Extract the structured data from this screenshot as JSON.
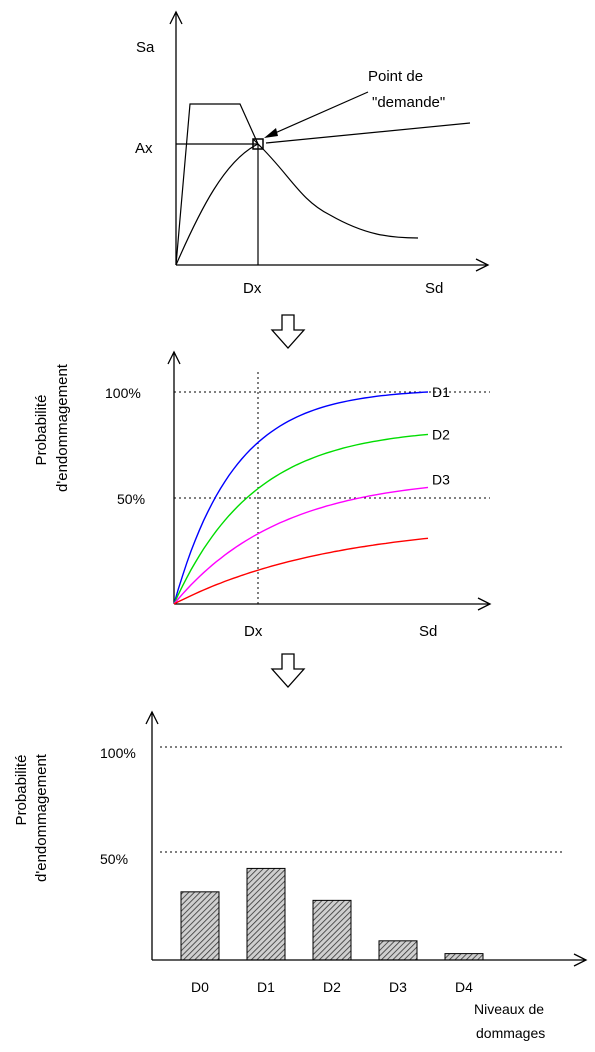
{
  "panel1": {
    "y_axis_label": "Sa",
    "x_axis_label": "Sd",
    "ax_label": "Ax",
    "dx_label": "Dx",
    "annotation_line1": "Point de",
    "annotation_line2": "\"demande\""
  },
  "panel2": {
    "y_axis_label_line1": "Probabilité",
    "y_axis_label_line2": "d'endommagement",
    "x_axis_label": "Sd",
    "dx_label": "Dx",
    "tick_100": "100%",
    "tick_50": "50%",
    "curves": [
      {
        "name": "D1",
        "color": "#0000ff",
        "plateau": 1.0
      },
      {
        "name": "D2",
        "color": "#00dd00",
        "plateau": 0.8
      },
      {
        "name": "D3",
        "color": "#ff00ff",
        "plateau": 0.55
      },
      {
        "name": "",
        "color": "#ff0000",
        "plateau": 0.31
      }
    ]
  },
  "panel3": {
    "y_axis_label_line1": "Probabilité",
    "y_axis_label_line2": "d'endommagement",
    "x_axis_label_line1": "Niveaux de",
    "x_axis_label_line2": "dommages",
    "tick_100": "100%",
    "tick_50": "50%"
  },
  "chart_data": {
    "type": "bar",
    "categories": [
      "D0",
      "D1",
      "D2",
      "D3",
      "D4"
    ],
    "values": [
      32,
      43,
      28,
      9,
      3
    ],
    "ylim": [
      0,
      100
    ],
    "ylabel": "Probabilité d'endommagement",
    "xlabel": "Niveaux de dommages"
  },
  "icons": {
    "arrow_down": "hollow-down-arrow-icon"
  }
}
